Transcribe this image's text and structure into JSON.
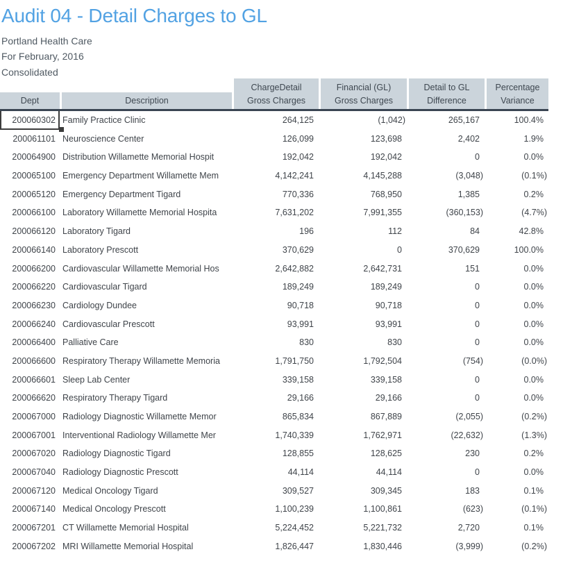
{
  "header": {
    "title": "Audit 04 - Detail Charges to GL",
    "subtitle_lines": [
      "Portland Health Care",
      "For February, 2016",
      "Consolidated"
    ]
  },
  "table": {
    "columns": [
      {
        "key": "dept",
        "line1": "",
        "line2": "Dept"
      },
      {
        "key": "description",
        "line1": "",
        "line2": "Description"
      },
      {
        "key": "charge_detail",
        "line1": "ChargeDetail",
        "line2": "Gross Charges"
      },
      {
        "key": "financial_gl",
        "line1": "Financial (GL)",
        "line2": "Gross Charges"
      },
      {
        "key": "difference",
        "line1": "Detail to GL",
        "line2": "Difference"
      },
      {
        "key": "variance",
        "line1": "Percentage",
        "line2": "Variance"
      }
    ],
    "rows": [
      {
        "dept": "200060302",
        "description": "Family Practice Clinic",
        "charge_detail": "264,125",
        "financial_gl": "(1,042)",
        "difference": "265,167",
        "variance": "100.4%"
      },
      {
        "dept": "200061101",
        "description": "Neuroscience Center",
        "charge_detail": "126,099",
        "financial_gl": "123,698",
        "difference": "2,402",
        "variance": "1.9%"
      },
      {
        "dept": "200064900",
        "description": "Distribution Willamette Memorial Hospit",
        "charge_detail": "192,042",
        "financial_gl": "192,042",
        "difference": "0",
        "variance": "0.0%"
      },
      {
        "dept": "200065100",
        "description": "Emergency Department Willamette Mem",
        "charge_detail": "4,142,241",
        "financial_gl": "4,145,288",
        "difference": "(3,048)",
        "variance": "(0.1%)"
      },
      {
        "dept": "200065120",
        "description": "Emergency Department Tigard",
        "charge_detail": "770,336",
        "financial_gl": "768,950",
        "difference": "1,385",
        "variance": "0.2%"
      },
      {
        "dept": "200066100",
        "description": "Laboratory Willamette Memorial Hospita",
        "charge_detail": "7,631,202",
        "financial_gl": "7,991,355",
        "difference": "(360,153)",
        "variance": "(4.7%)"
      },
      {
        "dept": "200066120",
        "description": "Laboratory Tigard",
        "charge_detail": "196",
        "financial_gl": "112",
        "difference": "84",
        "variance": "42.8%"
      },
      {
        "dept": "200066140",
        "description": "Laboratory Prescott",
        "charge_detail": "370,629",
        "financial_gl": "0",
        "difference": "370,629",
        "variance": "100.0%"
      },
      {
        "dept": "200066200",
        "description": "Cardiovascular Willamette Memorial Hos",
        "charge_detail": "2,642,882",
        "financial_gl": "2,642,731",
        "difference": "151",
        "variance": "0.0%"
      },
      {
        "dept": "200066220",
        "description": "Cardiovascular Tigard",
        "charge_detail": "189,249",
        "financial_gl": "189,249",
        "difference": "0",
        "variance": "0.0%"
      },
      {
        "dept": "200066230",
        "description": "Cardiology Dundee",
        "charge_detail": "90,718",
        "financial_gl": "90,718",
        "difference": "0",
        "variance": "0.0%"
      },
      {
        "dept": "200066240",
        "description": "Cardiovascular Prescott",
        "charge_detail": "93,991",
        "financial_gl": "93,991",
        "difference": "0",
        "variance": "0.0%"
      },
      {
        "dept": "200066400",
        "description": "Palliative Care",
        "charge_detail": "830",
        "financial_gl": "830",
        "difference": "0",
        "variance": "0.0%"
      },
      {
        "dept": "200066600",
        "description": "Respiratory Therapy Willamette Memoria",
        "charge_detail": "1,791,750",
        "financial_gl": "1,792,504",
        "difference": "(754)",
        "variance": "(0.0%)"
      },
      {
        "dept": "200066601",
        "description": "Sleep Lab Center",
        "charge_detail": "339,158",
        "financial_gl": "339,158",
        "difference": "0",
        "variance": "0.0%"
      },
      {
        "dept": "200066620",
        "description": "Respiratory Therapy Tigard",
        "charge_detail": "29,166",
        "financial_gl": "29,166",
        "difference": "0",
        "variance": "0.0%"
      },
      {
        "dept": "200067000",
        "description": "Radiology Diagnostic Willamette Memor",
        "charge_detail": "865,834",
        "financial_gl": "867,889",
        "difference": "(2,055)",
        "variance": "(0.2%)"
      },
      {
        "dept": "200067001",
        "description": "Interventional Radiology Willamette Mer",
        "charge_detail": "1,740,339",
        "financial_gl": "1,762,971",
        "difference": "(22,632)",
        "variance": "(1.3%)"
      },
      {
        "dept": "200067020",
        "description": "Radiology Diagnostic Tigard",
        "charge_detail": "128,855",
        "financial_gl": "128,625",
        "difference": "230",
        "variance": "0.2%"
      },
      {
        "dept": "200067040",
        "description": "Radiology Diagnostic Prescott",
        "charge_detail": "44,114",
        "financial_gl": "44,114",
        "difference": "0",
        "variance": "0.0%"
      },
      {
        "dept": "200067120",
        "description": "Medical Oncology Tigard",
        "charge_detail": "309,527",
        "financial_gl": "309,345",
        "difference": "183",
        "variance": "0.1%"
      },
      {
        "dept": "200067140",
        "description": "Medical Oncology Prescott",
        "charge_detail": "1,100,239",
        "financial_gl": "1,100,861",
        "difference": "(623)",
        "variance": "(0.1%)"
      },
      {
        "dept": "200067201",
        "description": "CT Willamette Memorial Hospital",
        "charge_detail": "5,224,452",
        "financial_gl": "5,221,732",
        "difference": "2,720",
        "variance": "0.1%"
      },
      {
        "dept": "200067202",
        "description": "MRI Willamette Memorial Hospital",
        "charge_detail": "1,826,447",
        "financial_gl": "1,830,446",
        "difference": "(3,999)",
        "variance": "(0.2%)"
      }
    ],
    "selected_cell": {
      "row_index": 0,
      "column": "dept"
    }
  },
  "colors": {
    "title": "#52A2E3",
    "subtitle": "#4F5962",
    "header_bg": "#CBD4DB",
    "header_text": "#3E4750",
    "header_rule": "#3A4552",
    "cell_text": "#3F444A",
    "selection": "#3C3C3C"
  }
}
